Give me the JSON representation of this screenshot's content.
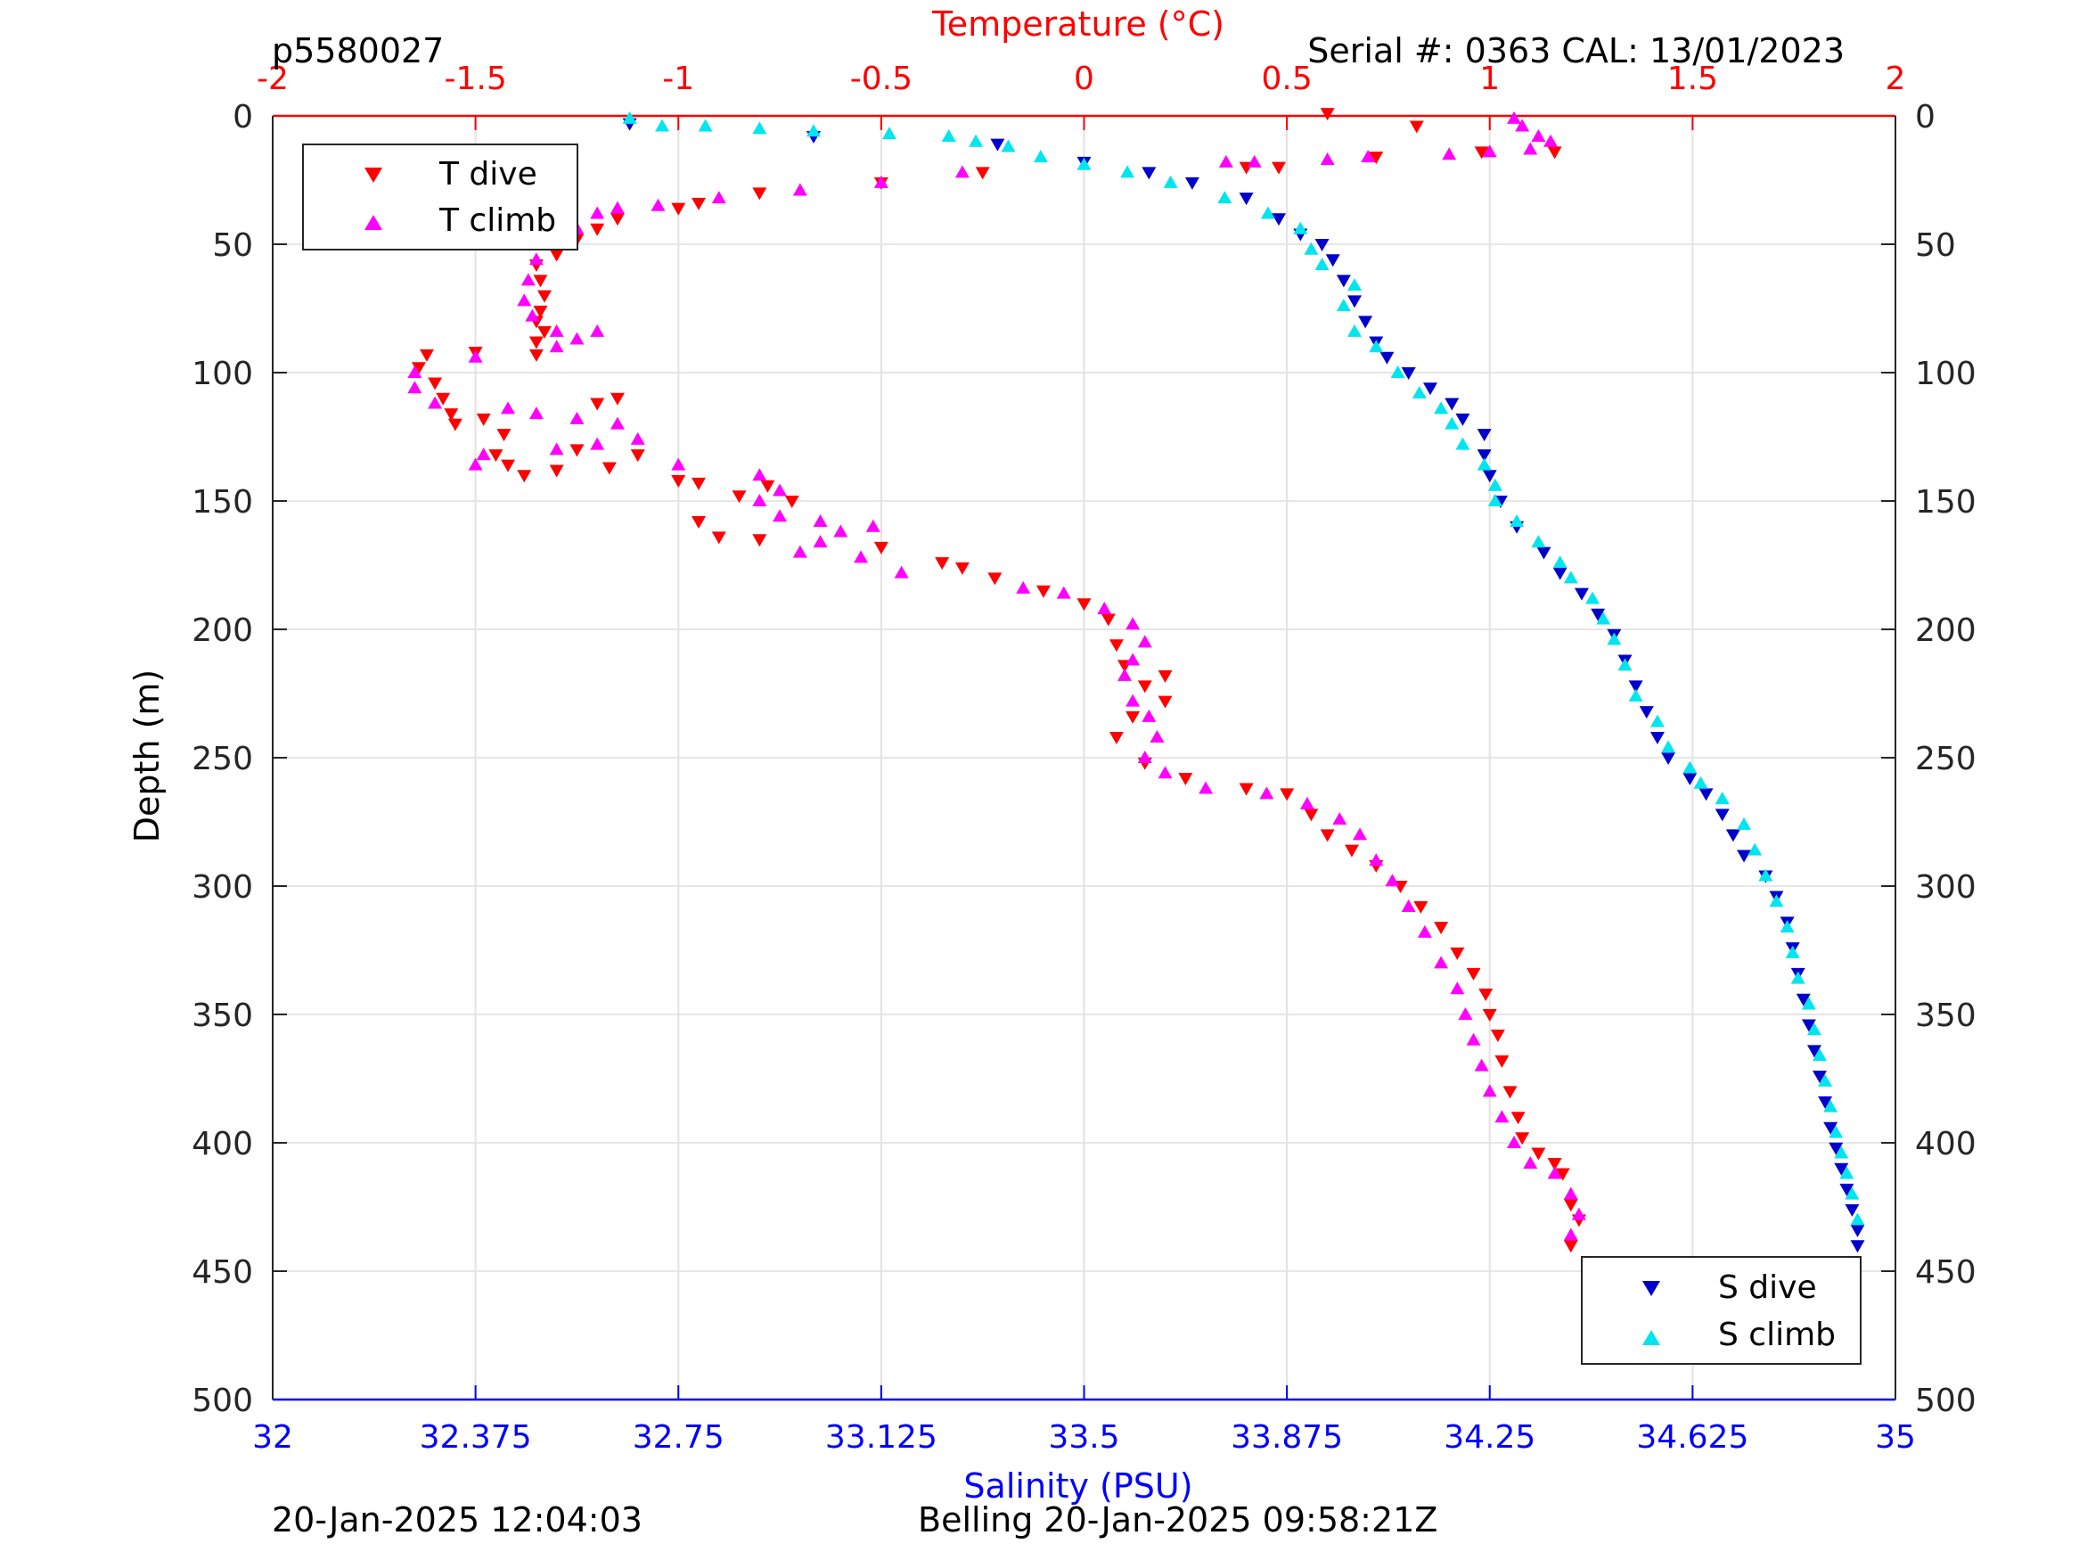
{
  "header": {
    "profile_id": "p5580027",
    "serial": "Serial #: 0363  CAL: 13/01/2023"
  },
  "footer": {
    "left": "20-Jan-2025 12:04:03",
    "center": "Belling 20-Jan-2025 09:58:21Z"
  },
  "colors": {
    "t_dive": "#ff0000",
    "t_climb": "#ff00ff",
    "s_dive": "#0000cc",
    "s_climb": "#00e5ee",
    "temp_axis": "#ff0000",
    "sal_axis": "#0000ff",
    "grid": "#e6e6e6",
    "temp_grid": "#f4c6c6"
  },
  "chart_data": {
    "type": "scatter",
    "xlabel_bottom": "Salinity (PSU)",
    "xlabel_top": "Temperature (°C)",
    "ylabel": "Depth (m)",
    "salinity_axis": {
      "lim": [
        32,
        35
      ],
      "ticks": [
        "32",
        "32.375",
        "32.75",
        "33.125",
        "33.5",
        "33.875",
        "34.25",
        "34.625",
        "35"
      ]
    },
    "temperature_axis": {
      "lim": [
        -2,
        2
      ],
      "ticks": [
        "-2",
        "-1.5",
        "-1",
        "-0.5",
        "0",
        "0.5",
        "1",
        "1.5",
        "2"
      ]
    },
    "depth_axis": {
      "lim": [
        0,
        500
      ],
      "reversed": true,
      "ticks": [
        "0",
        "50",
        "100",
        "150",
        "200",
        "250",
        "300",
        "350",
        "400",
        "450",
        "500"
      ]
    },
    "grid": true,
    "legends": [
      {
        "placement": "top-left",
        "entries": [
          "T dive",
          "T climb"
        ]
      },
      {
        "placement": "bottom-right",
        "entries": [
          "S dive",
          "S climb"
        ]
      }
    ],
    "series": [
      {
        "name": "T dive",
        "axis": "temperature",
        "marker": "triangle-down",
        "points": [
          [
            1.16,
            14
          ],
          [
            0.82,
            4
          ],
          [
            0.98,
            14
          ],
          [
            0.72,
            16
          ],
          [
            0.6,
            -1
          ],
          [
            0.4,
            20
          ],
          [
            0.48,
            20
          ],
          [
            -0.25,
            22
          ],
          [
            -0.5,
            26
          ],
          [
            -0.8,
            30
          ],
          [
            -0.95,
            34
          ],
          [
            -1.0,
            36
          ],
          [
            -1.15,
            40
          ],
          [
            -1.2,
            44
          ],
          [
            -1.25,
            48
          ],
          [
            -1.3,
            54
          ],
          [
            -1.35,
            58
          ],
          [
            -1.34,
            64
          ],
          [
            -1.33,
            70
          ],
          [
            -1.34,
            76
          ],
          [
            -1.35,
            80
          ],
          [
            -1.33,
            84
          ],
          [
            -1.35,
            88
          ],
          [
            -1.35,
            93
          ],
          [
            -1.62,
            93
          ],
          [
            -1.5,
            92
          ],
          [
            -1.64,
            98
          ],
          [
            -1.6,
            104
          ],
          [
            -1.58,
            110
          ],
          [
            -1.56,
            116
          ],
          [
            -1.55,
            120
          ],
          [
            -1.48,
            118
          ],
          [
            -1.43,
            124
          ],
          [
            -1.45,
            132
          ],
          [
            -1.42,
            136
          ],
          [
            -1.38,
            140
          ],
          [
            -1.3,
            138
          ],
          [
            -1.25,
            130
          ],
          [
            -1.2,
            112
          ],
          [
            -1.15,
            110
          ],
          [
            -1.1,
            132
          ],
          [
            -1.17,
            137
          ],
          [
            -1.0,
            142
          ],
          [
            -0.95,
            143
          ],
          [
            -0.78,
            144
          ],
          [
            -0.72,
            150
          ],
          [
            -0.85,
            148
          ],
          [
            -0.95,
            158
          ],
          [
            -0.9,
            164
          ],
          [
            -0.8,
            165
          ],
          [
            -0.5,
            168
          ],
          [
            -0.35,
            174
          ],
          [
            -0.3,
            176
          ],
          [
            -0.22,
            180
          ],
          [
            -0.1,
            185
          ],
          [
            0.0,
            190
          ],
          [
            0.06,
            196
          ],
          [
            0.08,
            206
          ],
          [
            0.1,
            214
          ],
          [
            0.15,
            222
          ],
          [
            0.2,
            218
          ],
          [
            0.2,
            228
          ],
          [
            0.12,
            234
          ],
          [
            0.08,
            242
          ],
          [
            0.15,
            252
          ],
          [
            0.25,
            258
          ],
          [
            0.4,
            262
          ],
          [
            0.5,
            264
          ],
          [
            0.56,
            272
          ],
          [
            0.6,
            280
          ],
          [
            0.66,
            286
          ],
          [
            0.72,
            292
          ],
          [
            0.78,
            300
          ],
          [
            0.83,
            308
          ],
          [
            0.88,
            316
          ],
          [
            0.92,
            326
          ],
          [
            0.96,
            334
          ],
          [
            0.99,
            342
          ],
          [
            1.0,
            350
          ],
          [
            1.02,
            358
          ],
          [
            1.03,
            368
          ],
          [
            1.05,
            380
          ],
          [
            1.07,
            390
          ],
          [
            1.08,
            398
          ],
          [
            1.12,
            404
          ],
          [
            1.16,
            408
          ],
          [
            1.18,
            412
          ],
          [
            1.2,
            424
          ],
          [
            1.22,
            430
          ],
          [
            1.2,
            440
          ]
        ]
      },
      {
        "name": "T climb",
        "axis": "temperature",
        "marker": "triangle-up",
        "points": [
          [
            1.06,
            1
          ],
          [
            1.08,
            4
          ],
          [
            1.12,
            8
          ],
          [
            1.15,
            10
          ],
          [
            1.1,
            13
          ],
          [
            1.0,
            14
          ],
          [
            0.9,
            15
          ],
          [
            0.7,
            16
          ],
          [
            0.6,
            17
          ],
          [
            0.42,
            18
          ],
          [
            0.35,
            18
          ],
          [
            -0.3,
            22
          ],
          [
            -0.5,
            26
          ],
          [
            -0.7,
            29
          ],
          [
            -0.9,
            32
          ],
          [
            -1.05,
            35
          ],
          [
            -1.15,
            36
          ],
          [
            -1.2,
            38
          ],
          [
            -1.25,
            44
          ],
          [
            -1.3,
            50
          ],
          [
            -1.35,
            56
          ],
          [
            -1.37,
            64
          ],
          [
            -1.38,
            72
          ],
          [
            -1.36,
            78
          ],
          [
            -1.3,
            84
          ],
          [
            -1.25,
            87
          ],
          [
            -1.2,
            84
          ],
          [
            -1.3,
            90
          ],
          [
            -1.5,
            94
          ],
          [
            -1.65,
            100
          ],
          [
            -1.65,
            106
          ],
          [
            -1.6,
            112
          ],
          [
            -1.42,
            114
          ],
          [
            -1.35,
            116
          ],
          [
            -1.25,
            118
          ],
          [
            -1.15,
            120
          ],
          [
            -1.1,
            126
          ],
          [
            -1.2,
            128
          ],
          [
            -1.3,
            130
          ],
          [
            -1.48,
            132
          ],
          [
            -1.5,
            136
          ],
          [
            -1.0,
            136
          ],
          [
            -0.8,
            140
          ],
          [
            -0.75,
            146
          ],
          [
            -0.8,
            150
          ],
          [
            -0.75,
            156
          ],
          [
            -0.65,
            158
          ],
          [
            -0.52,
            160
          ],
          [
            -0.6,
            162
          ],
          [
            -0.65,
            166
          ],
          [
            -0.7,
            170
          ],
          [
            -0.55,
            172
          ],
          [
            -0.45,
            178
          ],
          [
            -0.15,
            184
          ],
          [
            -0.05,
            186
          ],
          [
            0.05,
            192
          ],
          [
            0.12,
            198
          ],
          [
            0.15,
            205
          ],
          [
            0.12,
            212
          ],
          [
            0.1,
            218
          ],
          [
            0.12,
            228
          ],
          [
            0.16,
            234
          ],
          [
            0.18,
            242
          ],
          [
            0.15,
            250
          ],
          [
            0.2,
            256
          ],
          [
            0.3,
            262
          ],
          [
            0.45,
            264
          ],
          [
            0.55,
            268
          ],
          [
            0.63,
            274
          ],
          [
            0.68,
            280
          ],
          [
            0.72,
            290
          ],
          [
            0.76,
            298
          ],
          [
            0.8,
            308
          ],
          [
            0.84,
            318
          ],
          [
            0.88,
            330
          ],
          [
            0.92,
            340
          ],
          [
            0.94,
            350
          ],
          [
            0.96,
            360
          ],
          [
            0.98,
            370
          ],
          [
            1.0,
            380
          ],
          [
            1.03,
            390
          ],
          [
            1.06,
            400
          ],
          [
            1.1,
            408
          ],
          [
            1.16,
            412
          ],
          [
            1.2,
            420
          ],
          [
            1.22,
            428
          ],
          [
            1.2,
            436
          ]
        ]
      },
      {
        "name": "S dive",
        "axis": "salinity",
        "marker": "triangle-down",
        "points": [
          [
            32.66,
            3
          ],
          [
            33.0,
            8
          ],
          [
            33.34,
            11
          ],
          [
            33.5,
            18
          ],
          [
            33.62,
            22
          ],
          [
            33.7,
            26
          ],
          [
            33.8,
            32
          ],
          [
            33.86,
            40
          ],
          [
            33.9,
            46
          ],
          [
            33.94,
            50
          ],
          [
            33.96,
            56
          ],
          [
            33.98,
            64
          ],
          [
            34.0,
            72
          ],
          [
            34.02,
            80
          ],
          [
            34.04,
            88
          ],
          [
            34.06,
            94
          ],
          [
            34.1,
            100
          ],
          [
            34.14,
            106
          ],
          [
            34.18,
            112
          ],
          [
            34.2,
            118
          ],
          [
            34.24,
            124
          ],
          [
            34.24,
            132
          ],
          [
            34.25,
            140
          ],
          [
            34.27,
            150
          ],
          [
            34.3,
            160
          ],
          [
            34.35,
            170
          ],
          [
            34.38,
            178
          ],
          [
            34.42,
            186
          ],
          [
            34.45,
            194
          ],
          [
            34.48,
            202
          ],
          [
            34.5,
            212
          ],
          [
            34.52,
            222
          ],
          [
            34.54,
            232
          ],
          [
            34.56,
            242
          ],
          [
            34.58,
            250
          ],
          [
            34.62,
            258
          ],
          [
            34.65,
            264
          ],
          [
            34.68,
            272
          ],
          [
            34.7,
            280
          ],
          [
            34.72,
            288
          ],
          [
            34.76,
            296
          ],
          [
            34.78,
            304
          ],
          [
            34.8,
            314
          ],
          [
            34.81,
            324
          ],
          [
            34.82,
            334
          ],
          [
            34.83,
            344
          ],
          [
            34.84,
            354
          ],
          [
            34.85,
            364
          ],
          [
            34.86,
            374
          ],
          [
            34.87,
            384
          ],
          [
            34.88,
            394
          ],
          [
            34.89,
            402
          ],
          [
            34.9,
            410
          ],
          [
            34.91,
            418
          ],
          [
            34.92,
            426
          ],
          [
            34.93,
            434
          ],
          [
            34.93,
            440
          ]
        ]
      },
      {
        "name": "S climb",
        "axis": "salinity",
        "marker": "triangle-up",
        "points": [
          [
            32.66,
            1
          ],
          [
            32.72,
            4
          ],
          [
            32.8,
            4
          ],
          [
            32.9,
            5
          ],
          [
            33.0,
            6
          ],
          [
            33.14,
            7
          ],
          [
            33.25,
            8
          ],
          [
            33.3,
            10
          ],
          [
            33.36,
            12
          ],
          [
            33.42,
            16
          ],
          [
            33.5,
            19
          ],
          [
            33.58,
            22
          ],
          [
            33.66,
            26
          ],
          [
            33.76,
            32
          ],
          [
            33.84,
            38
          ],
          [
            33.9,
            44
          ],
          [
            33.92,
            52
          ],
          [
            33.94,
            58
          ],
          [
            34.0,
            66
          ],
          [
            33.98,
            74
          ],
          [
            34.0,
            84
          ],
          [
            34.04,
            90
          ],
          [
            34.08,
            100
          ],
          [
            34.12,
            108
          ],
          [
            34.16,
            114
          ],
          [
            34.18,
            120
          ],
          [
            34.2,
            128
          ],
          [
            34.24,
            136
          ],
          [
            34.26,
            144
          ],
          [
            34.26,
            150
          ],
          [
            34.3,
            158
          ],
          [
            34.34,
            166
          ],
          [
            34.38,
            174
          ],
          [
            34.4,
            180
          ],
          [
            34.44,
            188
          ],
          [
            34.46,
            196
          ],
          [
            34.48,
            204
          ],
          [
            34.5,
            214
          ],
          [
            34.52,
            226
          ],
          [
            34.56,
            236
          ],
          [
            34.58,
            246
          ],
          [
            34.62,
            254
          ],
          [
            34.64,
            260
          ],
          [
            34.68,
            266
          ],
          [
            34.72,
            276
          ],
          [
            34.74,
            286
          ],
          [
            34.76,
            296
          ],
          [
            34.78,
            306
          ],
          [
            34.8,
            316
          ],
          [
            34.81,
            326
          ],
          [
            34.82,
            336
          ],
          [
            34.84,
            346
          ],
          [
            34.85,
            356
          ],
          [
            34.86,
            366
          ],
          [
            34.87,
            376
          ],
          [
            34.88,
            386
          ],
          [
            34.89,
            396
          ],
          [
            34.9,
            404
          ],
          [
            34.91,
            412
          ],
          [
            34.92,
            420
          ],
          [
            34.93,
            430
          ]
        ]
      }
    ]
  }
}
